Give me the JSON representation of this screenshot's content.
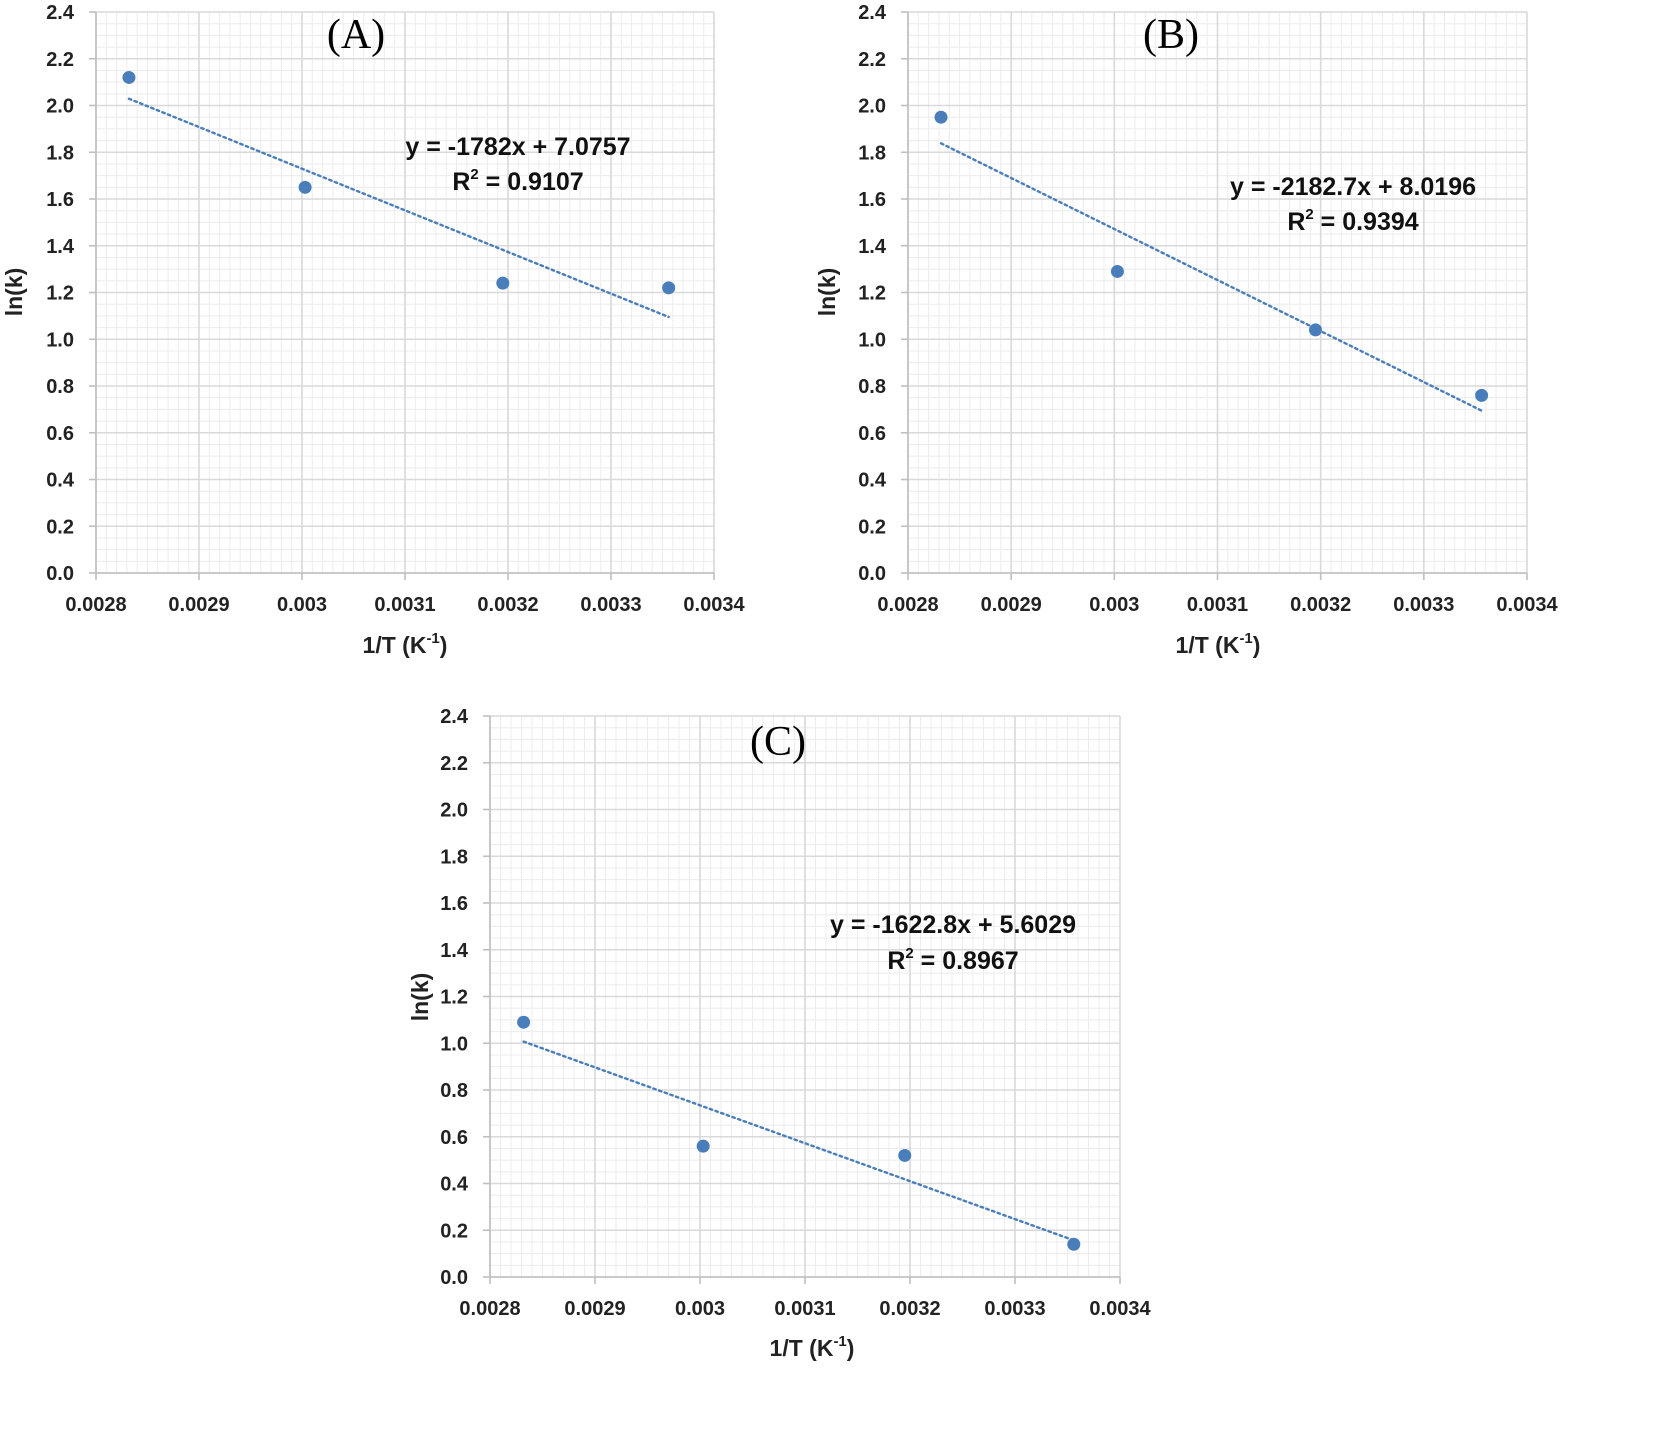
{
  "chart_data": [
    {
      "type": "scatter",
      "panel_label": "(A)",
      "xlabel": "1/T (K",
      "xlabel_exp": "-1",
      "xlabel_end": ")",
      "ylabel": "ln(k)",
      "xlim": [
        0.0028,
        0.0034
      ],
      "ylim": [
        0,
        2.4
      ],
      "xticks": [
        "0.0028",
        "0.0029",
        "0.003",
        "0.0031",
        "0.0032",
        "0.0033",
        "0.0034"
      ],
      "yticks": [
        "0.0",
        "0.2",
        "0.4",
        "0.6",
        "0.8",
        "1.0",
        "1.2",
        "1.4",
        "1.6",
        "1.8",
        "2.0",
        "2.2",
        "2.4"
      ],
      "grid": true,
      "series": [
        {
          "x": [
            0.002832,
            0.003003,
            0.003195,
            0.003356
          ],
          "y": [
            2.12,
            1.65,
            1.24,
            1.22
          ]
        }
      ],
      "trendline": {
        "slope": -1782,
        "intercept": 7.0757,
        "dotted": true
      },
      "equation": "y = -1782x + 7.0757",
      "r2_label": "R",
      "r2_exp": "2",
      "r2_value": " = 0.9107",
      "colors": {
        "marker": "#4a7ebb",
        "trend": "#4a7ebb",
        "grid": "#d9d9d9"
      }
    },
    {
      "type": "scatter",
      "panel_label": "(B)",
      "xlabel": "1/T (K",
      "xlabel_exp": "-1",
      "xlabel_end": ")",
      "ylabel": "ln(k)",
      "xlim": [
        0.0028,
        0.0034
      ],
      "ylim": [
        0,
        2.4
      ],
      "xticks": [
        "0.0028",
        "0.0029",
        "0.003",
        "0.0031",
        "0.0032",
        "0.0033",
        "0.0034"
      ],
      "yticks": [
        "0.0",
        "0.2",
        "0.4",
        "0.6",
        "0.8",
        "1.0",
        "1.2",
        "1.4",
        "1.6",
        "1.8",
        "2.0",
        "2.2",
        "2.4"
      ],
      "grid": true,
      "series": [
        {
          "x": [
            0.002832,
            0.003003,
            0.003195,
            0.003356
          ],
          "y": [
            1.95,
            1.29,
            1.04,
            0.76
          ]
        }
      ],
      "trendline": {
        "slope": -2182.7,
        "intercept": 8.0196,
        "dotted": true
      },
      "equation": "y = -2182.7x + 8.0196",
      "r2_label": "R",
      "r2_exp": "2",
      "r2_value": " = 0.9394",
      "colors": {
        "marker": "#4a7ebb",
        "trend": "#4a7ebb",
        "grid": "#d9d9d9"
      }
    },
    {
      "type": "scatter",
      "panel_label": "(C)",
      "xlabel": "1/T (K",
      "xlabel_exp": "-1",
      "xlabel_end": ")",
      "ylabel": "ln(k)",
      "xlim": [
        0.0028,
        0.0034
      ],
      "ylim": [
        0,
        2.4
      ],
      "xticks": [
        "0.0028",
        "0.0029",
        "0.003",
        "0.0031",
        "0.0032",
        "0.0033",
        "0.0034"
      ],
      "yticks": [
        "0.0",
        "0.2",
        "0.4",
        "0.6",
        "0.8",
        "1.0",
        "1.2",
        "1.4",
        "1.6",
        "1.8",
        "2.0",
        "2.2",
        "2.4"
      ],
      "grid": true,
      "series": [
        {
          "x": [
            0.002832,
            0.003003,
            0.003195,
            0.003356
          ],
          "y": [
            1.09,
            0.56,
            0.52,
            0.14
          ]
        }
      ],
      "trendline": {
        "slope": -1622.8,
        "intercept": 5.6029,
        "dotted": true
      },
      "equation": "y = -1622.8x + 5.6029",
      "r2_label": "R",
      "r2_exp": "2",
      "r2_value": " = 0.8967",
      "colors": {
        "marker": "#4a7ebb",
        "trend": "#4a7ebb",
        "grid": "#d9d9d9"
      }
    }
  ]
}
